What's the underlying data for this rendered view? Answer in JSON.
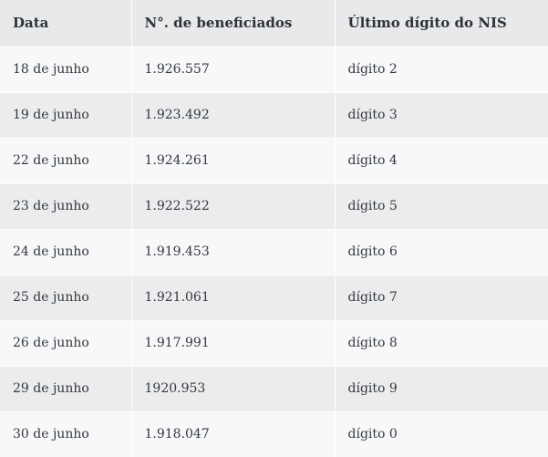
{
  "table": {
    "headers": [
      "Data",
      "N°. de beneficiados",
      "Último dígito do NIS"
    ],
    "rows": [
      [
        "18 de junho",
        "1.926.557",
        "dígito 2"
      ],
      [
        "19 de junho",
        "1.923.492",
        "dígito 3"
      ],
      [
        "22 de junho",
        "1.924.261",
        "dígito 4"
      ],
      [
        "23 de junho",
        "1.922.522",
        "dígito 5"
      ],
      [
        "24 de junho",
        "1.919.453",
        "dígito 6"
      ],
      [
        "25 de junho",
        "1.921.061",
        "dígito 7"
      ],
      [
        "26 de junho",
        "1.917.991",
        "dígito 8"
      ],
      [
        "29 de junho",
        "1920.953",
        "dígito 9"
      ],
      [
        "30 de junho",
        "1.918.047",
        "dígito 0"
      ]
    ]
  },
  "colors": {
    "header_bg": "#e8e9ea",
    "row_light": "#f7f8f9",
    "row_dark": "#ebeced",
    "text": "#2f3236"
  }
}
